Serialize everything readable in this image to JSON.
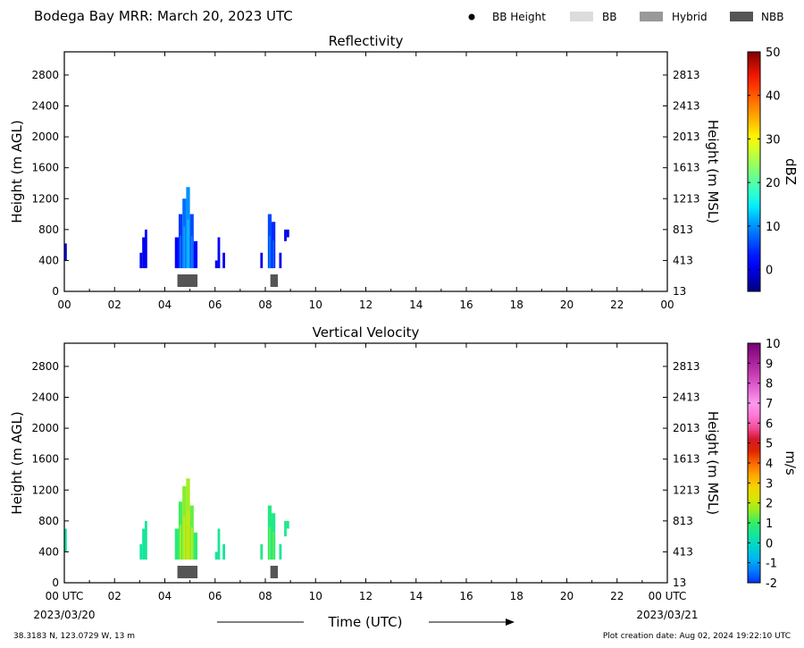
{
  "header": {
    "title": "Bodega Bay MRR:  March 20, 2023 UTC",
    "legend": [
      {
        "label": "BB Height",
        "symbol": "dot",
        "color": "#000000"
      },
      {
        "label": "BB",
        "symbol": "bar",
        "color": "#dcdcdc"
      },
      {
        "label": "Hybrid",
        "symbol": "bar",
        "color": "#999999"
      },
      {
        "label": "NBB",
        "symbol": "bar",
        "color": "#555555"
      }
    ]
  },
  "footer": {
    "location": "38.3183 N, 123.0729 W, 13 m",
    "creation": "Plot creation date: Aug 02, 2024 19:22:10 UTC",
    "x_title": "Time (UTC)",
    "date_start": "2023/03/20",
    "date_end": "2023/03/21"
  },
  "chart_data": [
    {
      "type": "heatmap",
      "title": "Reflectivity",
      "xlabel": "",
      "ylabel": "Height (m AGL)",
      "ylabel_right": "Height (m MSL)",
      "xlim": [
        0,
        24
      ],
      "ylim": [
        0,
        3100
      ],
      "x_ticks": [
        "00",
        "02",
        "04",
        "06",
        "08",
        "10",
        "12",
        "14",
        "16",
        "18",
        "20",
        "22",
        "00"
      ],
      "y_ticks": [
        0,
        400,
        800,
        1200,
        1600,
        2000,
        2400,
        2800
      ],
      "y_ticks_right": [
        "13",
        "413",
        "813",
        "1213",
        "1613",
        "2013",
        "2413",
        "2813"
      ],
      "colorbar": {
        "label": "dBZ",
        "min": -5,
        "max": 50,
        "ticks": [
          0,
          10,
          20,
          30,
          40,
          50
        ],
        "palette": "jet"
      },
      "regions": [
        {
          "t0": 0.0,
          "t1": 0.1,
          "h0": 400,
          "h1": 620,
          "value": 0
        },
        {
          "t0": 3.0,
          "t1": 3.1,
          "h0": 300,
          "h1": 500,
          "value": 0
        },
        {
          "t0": 3.1,
          "t1": 3.2,
          "h0": 300,
          "h1": 700,
          "value": 0
        },
        {
          "t0": 3.2,
          "t1": 3.3,
          "h0": 300,
          "h1": 800,
          "value": 2
        },
        {
          "t0": 4.4,
          "t1": 4.55,
          "h0": 300,
          "h1": 700,
          "value": 2
        },
        {
          "t0": 4.55,
          "t1": 4.7,
          "h0": 300,
          "h1": 1000,
          "value": 5
        },
        {
          "t0": 4.7,
          "t1": 4.85,
          "h0": 300,
          "h1": 1200,
          "value": 8
        },
        {
          "t0": 4.85,
          "t1": 5.0,
          "h0": 300,
          "h1": 1350,
          "value": 10
        },
        {
          "t0": 5.0,
          "t1": 5.15,
          "h0": 300,
          "h1": 1000,
          "value": 6
        },
        {
          "t0": 5.15,
          "t1": 5.3,
          "h0": 300,
          "h1": 650,
          "value": 2
        },
        {
          "t0": 6.0,
          "t1": 6.1,
          "h0": 300,
          "h1": 400,
          "value": 0
        },
        {
          "t0": 6.1,
          "t1": 6.2,
          "h0": 300,
          "h1": 700,
          "value": 1
        },
        {
          "t0": 6.3,
          "t1": 6.4,
          "h0": 300,
          "h1": 500,
          "value": 1
        },
        {
          "t0": 7.8,
          "t1": 7.9,
          "h0": 300,
          "h1": 500,
          "value": 0
        },
        {
          "t0": 8.1,
          "t1": 8.25,
          "h0": 300,
          "h1": 1000,
          "value": 6
        },
        {
          "t0": 8.25,
          "t1": 8.4,
          "h0": 300,
          "h1": 900,
          "value": 4
        },
        {
          "t0": 8.55,
          "t1": 8.65,
          "h0": 300,
          "h1": 500,
          "value": 0
        },
        {
          "t0": 8.75,
          "t1": 8.85,
          "h0": 650,
          "h1": 800,
          "value": 0
        },
        {
          "t0": 8.85,
          "t1": 8.95,
          "h0": 700,
          "h1": 800,
          "value": 0
        }
      ],
      "bb_bars": [
        {
          "type": "NBB",
          "t0": 4.5,
          "t1": 5.3
        },
        {
          "type": "NBB",
          "t0": 8.2,
          "t1": 8.5
        }
      ]
    },
    {
      "type": "heatmap",
      "title": "Vertical Velocity",
      "xlabel": "Time (UTC)",
      "ylabel": "Height (m AGL)",
      "ylabel_right": "Height (m MSL)",
      "xlim": [
        0,
        24
      ],
      "ylim": [
        0,
        3100
      ],
      "x_ticks": [
        "00 UTC",
        "02",
        "04",
        "06",
        "08",
        "10",
        "12",
        "14",
        "16",
        "18",
        "20",
        "22",
        "00 UTC"
      ],
      "y_ticks": [
        0,
        400,
        800,
        1200,
        1600,
        2000,
        2400,
        2800
      ],
      "y_ticks_right": [
        "13",
        "413",
        "813",
        "1213",
        "1613",
        "2013",
        "2413",
        "2813"
      ],
      "colorbar": {
        "label": "m/s",
        "min": -2,
        "max": 10,
        "ticks": [
          -2,
          -1,
          0,
          1,
          2,
          3,
          4,
          5,
          6,
          7,
          8,
          9,
          10
        ],
        "palette": "velocity"
      },
      "regions": [
        {
          "t0": 0.0,
          "t1": 0.1,
          "h0": 400,
          "h1": 700,
          "value": 0.3
        },
        {
          "t0": 3.0,
          "t1": 3.1,
          "h0": 300,
          "h1": 500,
          "value": 0.4
        },
        {
          "t0": 3.1,
          "t1": 3.2,
          "h0": 300,
          "h1": 700,
          "value": 0.4
        },
        {
          "t0": 3.2,
          "t1": 3.3,
          "h0": 300,
          "h1": 800,
          "value": 0.5
        },
        {
          "t0": 4.4,
          "t1": 4.55,
          "h0": 300,
          "h1": 700,
          "value": 0.8
        },
        {
          "t0": 4.55,
          "t1": 4.7,
          "h0": 300,
          "h1": 1050,
          "value": 1.1
        },
        {
          "t0": 4.7,
          "t1": 4.85,
          "h0": 300,
          "h1": 1250,
          "value": 1.5
        },
        {
          "t0": 4.85,
          "t1": 5.0,
          "h0": 300,
          "h1": 1350,
          "value": 1.7
        },
        {
          "t0": 5.0,
          "t1": 5.15,
          "h0": 300,
          "h1": 1000,
          "value": 1.3
        },
        {
          "t0": 5.15,
          "t1": 5.3,
          "h0": 300,
          "h1": 650,
          "value": 0.9
        },
        {
          "t0": 6.0,
          "t1": 6.1,
          "h0": 300,
          "h1": 400,
          "value": 0.4
        },
        {
          "t0": 6.1,
          "t1": 6.2,
          "h0": 300,
          "h1": 700,
          "value": 0.5
        },
        {
          "t0": 6.3,
          "t1": 6.4,
          "h0": 300,
          "h1": 500,
          "value": 0.4
        },
        {
          "t0": 7.8,
          "t1": 7.9,
          "h0": 300,
          "h1": 500,
          "value": 0.6
        },
        {
          "t0": 8.1,
          "t1": 8.25,
          "h0": 300,
          "h1": 1000,
          "value": 0.7
        },
        {
          "t0": 8.25,
          "t1": 8.4,
          "h0": 300,
          "h1": 900,
          "value": 0.6
        },
        {
          "t0": 8.55,
          "t1": 8.65,
          "h0": 300,
          "h1": 500,
          "value": 0.5
        },
        {
          "t0": 8.75,
          "t1": 8.85,
          "h0": 600,
          "h1": 800,
          "value": 0.6
        },
        {
          "t0": 8.85,
          "t1": 8.95,
          "h0": 700,
          "h1": 800,
          "value": 0.6
        }
      ],
      "bb_bars": [
        {
          "type": "NBB",
          "t0": 4.5,
          "t1": 5.3
        },
        {
          "type": "NBB",
          "t0": 8.2,
          "t1": 8.5
        }
      ]
    }
  ]
}
